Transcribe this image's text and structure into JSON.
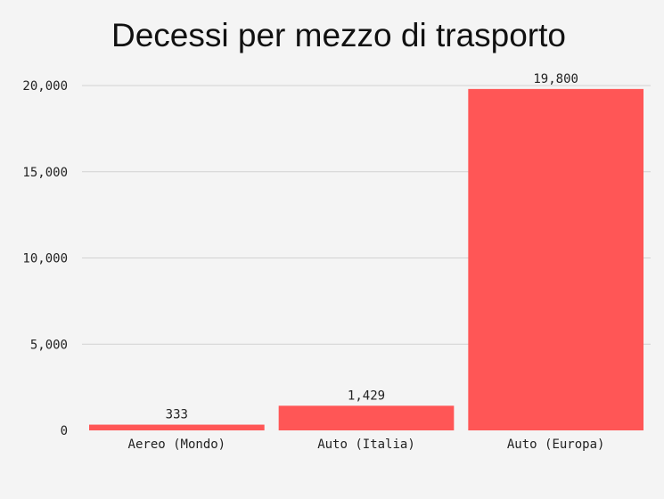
{
  "chart_data": {
    "type": "bar",
    "title": "Decessi per mezzo di trasporto",
    "xlabel": "",
    "ylabel": "",
    "categories": [
      "Aereo (Mondo)",
      "Auto (Italia)",
      "Auto (Europa)"
    ],
    "values": [
      333,
      1429,
      19800
    ],
    "value_labels": [
      "333",
      "1,429",
      "19,800"
    ],
    "ylim": [
      0,
      20000
    ],
    "yticks": [
      0,
      5000,
      10000,
      15000,
      20000
    ],
    "ytick_labels": [
      "0",
      "5,000",
      "10,000",
      "15,000",
      "20,000"
    ],
    "grid": true,
    "bar_color": "#ff5656"
  }
}
